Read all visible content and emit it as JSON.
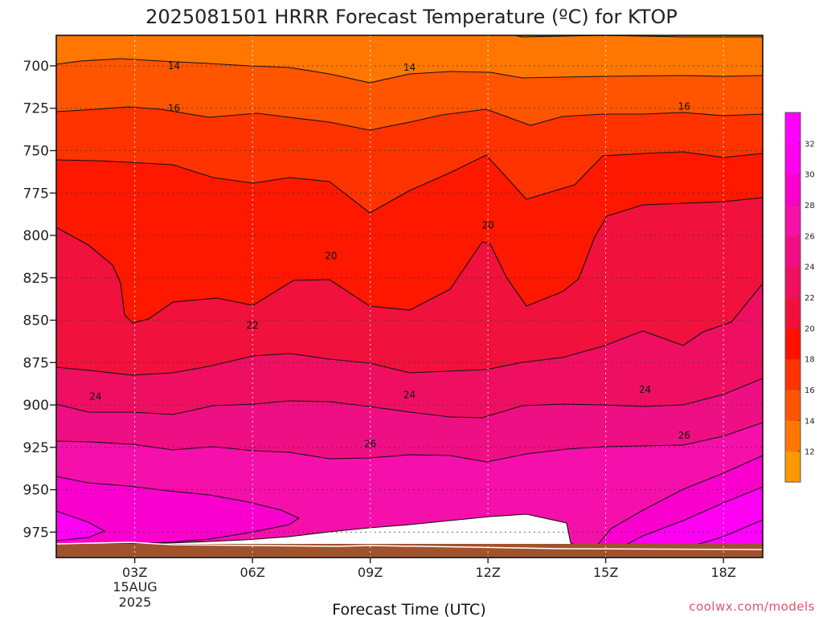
{
  "chart_data": {
    "type": "heatmap",
    "title": "2025081501 HRRR Forecast Temperature (ºC) for KTOP",
    "xlabel": "Forecast Time (UTC)",
    "ylabel": "",
    "x_ticks": [
      "03Z",
      "06Z",
      "09Z",
      "12Z",
      "15Z",
      "18Z"
    ],
    "x_date_label": [
      "15AUG",
      "2025"
    ],
    "y_ticks": [
      "700",
      "725",
      "750",
      "775",
      "800",
      "825",
      "850",
      "875",
      "900",
      "925",
      "950",
      "975"
    ],
    "y_range": [
      682,
      990
    ],
    "x_range_hours": [
      1,
      19
    ],
    "colorbar_ticks": [
      "12",
      "14",
      "16",
      "18",
      "20",
      "22",
      "24",
      "26",
      "28",
      "30",
      "32"
    ],
    "colorbar_colors": [
      "#ff9900",
      "#ff7700",
      "#ff5500",
      "#ff3300",
      "#ff1100",
      "#f0113a",
      "#ef1060",
      "#ef0f82",
      "#f510a8",
      "#fa00cc",
      "#ff00ee",
      "#ff00ff"
    ],
    "ground_color": "#a0522d",
    "contour_labels": [
      {
        "text": "14",
        "x": 4.0,
        "y": 700
      },
      {
        "text": "14",
        "x": 10.0,
        "y": 701
      },
      {
        "text": "16",
        "x": 4.0,
        "y": 725
      },
      {
        "text": "16",
        "x": 17.0,
        "y": 724
      },
      {
        "text": "20",
        "x": 12.0,
        "y": 794
      },
      {
        "text": "20",
        "x": 8.0,
        "y": 812
      },
      {
        "text": "22",
        "x": 6.0,
        "y": 853
      },
      {
        "text": "24",
        "x": 2.0,
        "y": 895
      },
      {
        "text": "24",
        "x": 10.0,
        "y": 894
      },
      {
        "text": "24",
        "x": 16.0,
        "y": 891
      },
      {
        "text": "26",
        "x": 9.0,
        "y": 923
      },
      {
        "text": "26",
        "x": 17.0,
        "y": 918
      }
    ]
  },
  "credit": "coolwx.com/models"
}
